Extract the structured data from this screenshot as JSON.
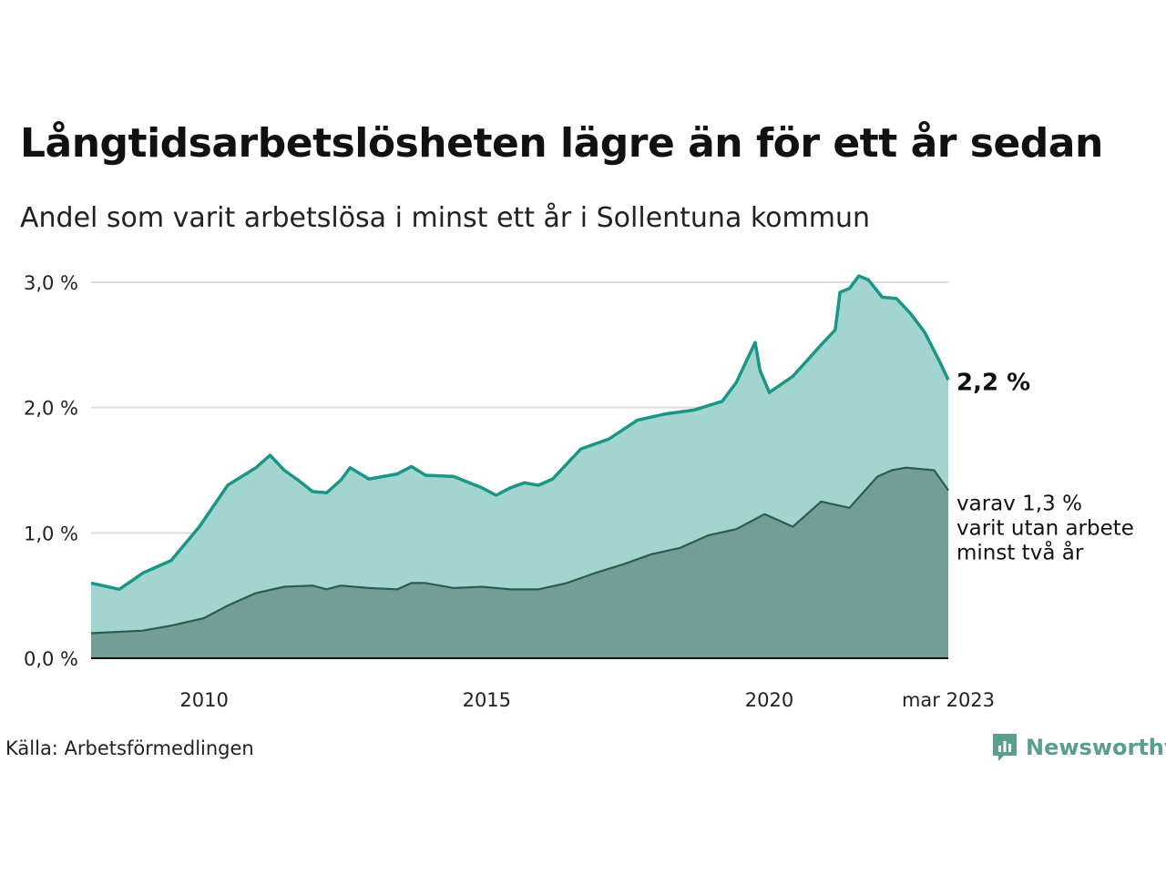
{
  "title": "Långtidsarbetslösheten lägre än för ett år sedan",
  "subtitle": "Andel som varit arbetslösa i minst ett år i Sollentuna kommun",
  "source": "Källa: Arbetsförmedlingen",
  "brand": {
    "name": "Newsworthy",
    "icon": "newsworthy-logo-icon",
    "color": "#5a9e8d"
  },
  "chart_data": {
    "type": "area",
    "x_start": "2008-01",
    "x_end": "2023-03",
    "x_ticks": [
      {
        "date": "2010-01",
        "label": "2010"
      },
      {
        "date": "2015-01",
        "label": "2015"
      },
      {
        "date": "2020-01",
        "label": "2020"
      },
      {
        "date": "2023-03",
        "label": "mar 2023"
      }
    ],
    "y_ticks": [
      {
        "value": 0,
        "label": "0,0 %"
      },
      {
        "value": 1,
        "label": "1,0 %"
      },
      {
        "value": 2,
        "label": "2,0 %"
      },
      {
        "value": 3,
        "label": "3,0 %"
      }
    ],
    "ylim": [
      0,
      3
    ],
    "grid": true,
    "colors": {
      "total_line": "#1b9586",
      "total_fill": "#a3d5d0",
      "long_line": "#2e5a52",
      "long_fill": "#729e96",
      "gridline": "#dddddd",
      "axis": "#111111"
    },
    "series": [
      {
        "key": "total",
        "points": [
          [
            "2008-01",
            0.6
          ],
          [
            "2008-07",
            0.55
          ],
          [
            "2008-12",
            0.68
          ],
          [
            "2009-06",
            0.78
          ],
          [
            "2009-12",
            1.05
          ],
          [
            "2010-06",
            1.38
          ],
          [
            "2010-12",
            1.52
          ],
          [
            "2011-03",
            1.62
          ],
          [
            "2011-06",
            1.5
          ],
          [
            "2011-09",
            1.42
          ],
          [
            "2011-12",
            1.33
          ],
          [
            "2012-03",
            1.32
          ],
          [
            "2012-06",
            1.42
          ],
          [
            "2012-08",
            1.52
          ],
          [
            "2012-12",
            1.43
          ],
          [
            "2013-06",
            1.47
          ],
          [
            "2013-09",
            1.53
          ],
          [
            "2013-12",
            1.46
          ],
          [
            "2014-06",
            1.45
          ],
          [
            "2014-12",
            1.36
          ],
          [
            "2015-03",
            1.3
          ],
          [
            "2015-06",
            1.36
          ],
          [
            "2015-09",
            1.4
          ],
          [
            "2015-12",
            1.38
          ],
          [
            "2016-03",
            1.43
          ],
          [
            "2016-09",
            1.67
          ],
          [
            "2017-03",
            1.75
          ],
          [
            "2017-09",
            1.9
          ],
          [
            "2018-03",
            1.95
          ],
          [
            "2018-09",
            1.98
          ],
          [
            "2019-03",
            2.05
          ],
          [
            "2019-06",
            2.2
          ],
          [
            "2019-10",
            2.52
          ],
          [
            "2019-11",
            2.3
          ],
          [
            "2020-01",
            2.12
          ],
          [
            "2020-06",
            2.25
          ],
          [
            "2020-12",
            2.5
          ],
          [
            "2021-03",
            2.62
          ],
          [
            "2021-04",
            2.92
          ],
          [
            "2021-06",
            2.95
          ],
          [
            "2021-08",
            3.05
          ],
          [
            "2021-10",
            3.02
          ],
          [
            "2022-01",
            2.88
          ],
          [
            "2022-04",
            2.87
          ],
          [
            "2022-07",
            2.75
          ],
          [
            "2022-10",
            2.6
          ],
          [
            "2023-01",
            2.38
          ],
          [
            "2023-03",
            2.22
          ]
        ]
      },
      {
        "key": "long",
        "points": [
          [
            "2008-01",
            0.2
          ],
          [
            "2008-12",
            0.22
          ],
          [
            "2009-06",
            0.26
          ],
          [
            "2010-01",
            0.32
          ],
          [
            "2010-06",
            0.42
          ],
          [
            "2010-12",
            0.52
          ],
          [
            "2011-06",
            0.57
          ],
          [
            "2011-12",
            0.58
          ],
          [
            "2012-03",
            0.55
          ],
          [
            "2012-06",
            0.58
          ],
          [
            "2012-12",
            0.56
          ],
          [
            "2013-06",
            0.55
          ],
          [
            "2013-09",
            0.6
          ],
          [
            "2013-12",
            0.6
          ],
          [
            "2014-06",
            0.56
          ],
          [
            "2014-12",
            0.57
          ],
          [
            "2015-06",
            0.55
          ],
          [
            "2015-12",
            0.55
          ],
          [
            "2016-06",
            0.6
          ],
          [
            "2016-12",
            0.68
          ],
          [
            "2017-06",
            0.75
          ],
          [
            "2017-12",
            0.83
          ],
          [
            "2018-06",
            0.88
          ],
          [
            "2018-12",
            0.98
          ],
          [
            "2019-06",
            1.03
          ],
          [
            "2019-12",
            1.15
          ],
          [
            "2020-06",
            1.05
          ],
          [
            "2020-12",
            1.25
          ],
          [
            "2021-06",
            1.2
          ],
          [
            "2021-12",
            1.45
          ],
          [
            "2022-03",
            1.5
          ],
          [
            "2022-06",
            1.52
          ],
          [
            "2022-12",
            1.5
          ],
          [
            "2023-03",
            1.34
          ]
        ]
      }
    ],
    "annotations": [
      {
        "series": "total",
        "text": "2,2 %"
      },
      {
        "series": "long",
        "lines": [
          "varav 1,3 %",
          "varit utan arbete",
          "minst två år"
        ]
      }
    ]
  }
}
